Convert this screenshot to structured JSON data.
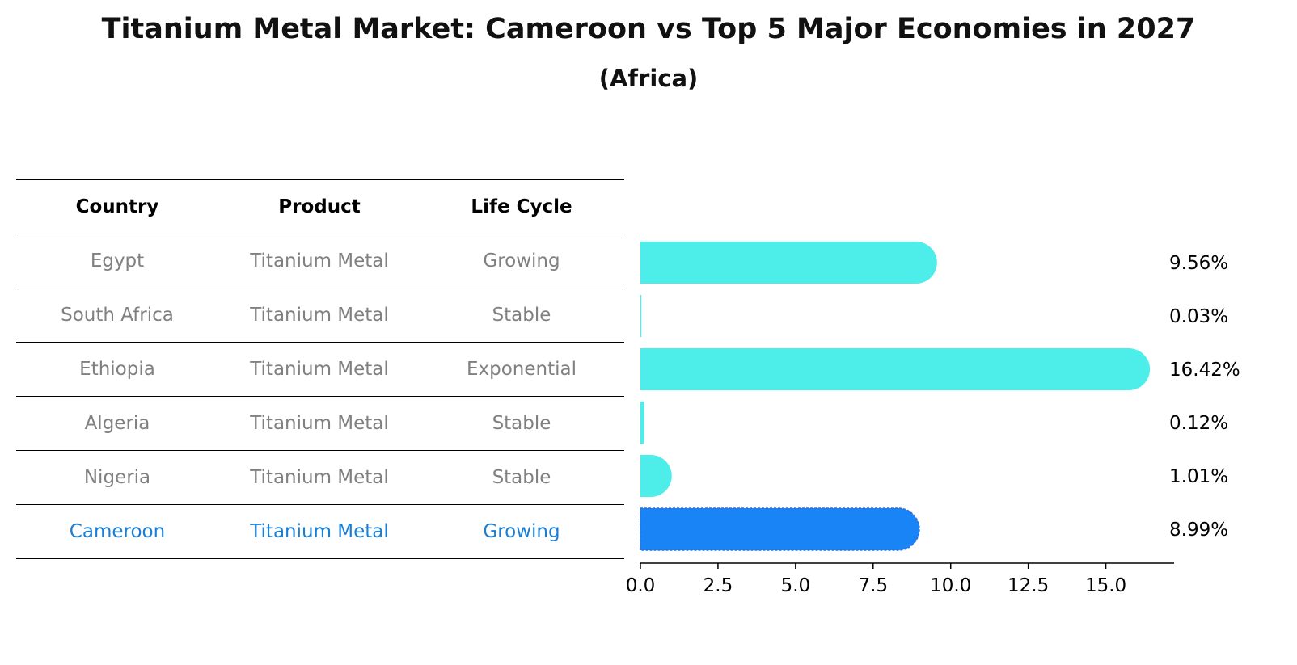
{
  "title": "Titanium Metal Market: Cameroon vs Top 5 Major Economies in 2027",
  "subtitle": "(Africa)",
  "table": {
    "headers": [
      "Country",
      "Product",
      "Life Cycle"
    ],
    "rows": [
      {
        "country": "Egypt",
        "product": "Titanium Metal",
        "life_cycle": "Growing"
      },
      {
        "country": "South Africa",
        "product": "Titanium Metal",
        "life_cycle": "Stable"
      },
      {
        "country": "Ethiopia",
        "product": "Titanium Metal",
        "life_cycle": "Exponential"
      },
      {
        "country": "Algeria",
        "product": "Titanium Metal",
        "life_cycle": "Stable"
      },
      {
        "country": "Nigeria",
        "product": "Titanium Metal",
        "life_cycle": "Stable"
      },
      {
        "country": "Cameroon",
        "product": "Titanium Metal",
        "life_cycle": "Growing"
      }
    ]
  },
  "chart_data": {
    "type": "bar",
    "orientation": "horizontal",
    "categories": [
      "Egypt",
      "South Africa",
      "Ethiopia",
      "Algeria",
      "Nigeria",
      "Cameroon"
    ],
    "values": [
      9.56,
      0.03,
      16.42,
      0.12,
      1.01,
      8.99
    ],
    "data_labels": [
      "9.56%",
      "0.03%",
      "16.42%",
      "0.12%",
      "1.01%",
      "8.99%"
    ],
    "xlim": [
      0,
      17.2
    ],
    "xticks": [
      0.0,
      2.5,
      5.0,
      7.5,
      10.0,
      12.5,
      15.0
    ],
    "xtick_labels": [
      "0.0",
      "2.5",
      "5.0",
      "7.5",
      "10.0",
      "12.5",
      "15.0"
    ],
    "grid": false,
    "highlight_category": "Cameroon",
    "colors": {
      "default": "#4deeea",
      "highlight": "#1984f5",
      "muted_text": "#808080",
      "highlight_text": "#1a7fd4"
    }
  }
}
